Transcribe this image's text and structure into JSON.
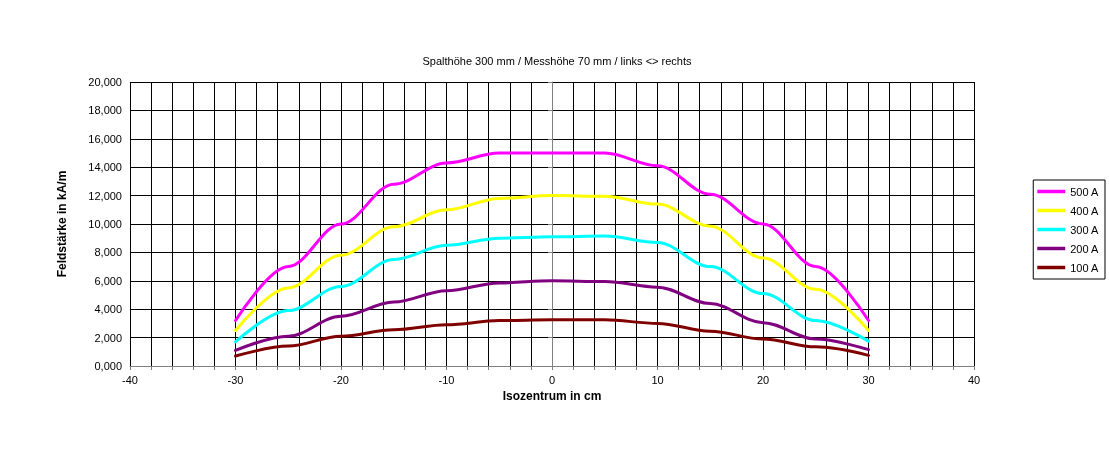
{
  "chart_data": {
    "type": "line",
    "title": "Spalthöhe 300 mm / Messhöhe 70 mm / links <> rechts",
    "xlabel": "Isozentrum in cm",
    "ylabel": "Feldstärke in kA/m",
    "x": [
      -30,
      -25,
      -20,
      -15,
      -10,
      -5,
      0,
      5,
      10,
      15,
      20,
      25,
      30
    ],
    "series": [
      {
        "name": "500 A",
        "color": "#ff00ff",
        "values": [
          3200,
          7000,
          10000,
          12800,
          14300,
          15000,
          15000,
          15000,
          14100,
          12100,
          10000,
          7000,
          3200
        ]
      },
      {
        "name": "400 A",
        "color": "#ffff00",
        "values": [
          2500,
          5500,
          7800,
          9800,
          11000,
          11800,
          12000,
          11950,
          11400,
          9850,
          7600,
          5400,
          2500
        ]
      },
      {
        "name": "300 A",
        "color": "#00ffff",
        "values": [
          1700,
          3900,
          5600,
          7500,
          8500,
          9000,
          9100,
          9150,
          8700,
          7000,
          5100,
          3200,
          1750
        ]
      },
      {
        "name": "200 A",
        "color": "#800080",
        "values": [
          1100,
          2100,
          3500,
          4500,
          5300,
          5850,
          6000,
          5950,
          5550,
          4400,
          3050,
          1900,
          1150
        ]
      },
      {
        "name": "100 A",
        "color": "#800000",
        "values": [
          700,
          1400,
          2100,
          2550,
          2900,
          3200,
          3250,
          3250,
          3000,
          2450,
          1900,
          1350,
          750
        ]
      }
    ],
    "xlim": [
      -40,
      40
    ],
    "xticks": [
      -40,
      {
        "value": -38,
        "label": null
      },
      {
        "value": -36,
        "label": null
      },
      {
        "value": -34,
        "label": null
      },
      {
        "value": -32,
        "label": null
      },
      -30,
      {
        "value": -28,
        "label": null
      },
      {
        "value": -26,
        "label": null
      },
      {
        "value": -24,
        "label": null
      },
      {
        "value": -22,
        "label": null
      },
      -20,
      {
        "value": -18,
        "label": null
      },
      {
        "value": -16,
        "label": null
      },
      {
        "value": -14,
        "label": null
      },
      {
        "value": -12,
        "label": null
      },
      -10,
      {
        "value": -8,
        "label": null
      },
      {
        "value": -6,
        "label": null
      },
      {
        "value": -4,
        "label": null
      },
      {
        "value": -2,
        "label": null
      },
      0,
      {
        "value": 2,
        "label": null
      },
      {
        "value": 4,
        "label": null
      },
      {
        "value": 6,
        "label": null
      },
      {
        "value": 8,
        "label": null
      },
      10,
      {
        "value": 12,
        "label": null
      },
      {
        "value": 14,
        "label": null
      },
      {
        "value": 16,
        "label": null
      },
      {
        "value": 18,
        "label": null
      },
      20,
      {
        "value": 22,
        "label": null
      },
      {
        "value": 24,
        "label": null
      },
      {
        "value": 26,
        "label": null
      },
      {
        "value": 28,
        "label": null
      },
      30,
      {
        "value": 32,
        "label": null
      },
      {
        "value": 34,
        "label": null
      },
      {
        "value": 36,
        "label": null
      },
      {
        "value": 38,
        "label": null
      },
      40
    ],
    "ylim": [
      0,
      20000
    ],
    "yticks": [
      {
        "value": 0,
        "label": "0,000"
      },
      {
        "value": 2000,
        "label": "2,000"
      },
      {
        "value": 4000,
        "label": "4,000"
      },
      {
        "value": 6000,
        "label": "6,000"
      },
      {
        "value": 8000,
        "label": "8,000"
      },
      {
        "value": 10000,
        "label": "10,000"
      },
      {
        "value": 12000,
        "label": "12,000"
      },
      {
        "value": 14000,
        "label": "14,000"
      },
      {
        "value": 16000,
        "label": "16,000"
      },
      {
        "value": 18000,
        "label": "18,000"
      },
      {
        "value": 20000,
        "label": "20,000"
      }
    ],
    "grid": true,
    "legend": "right",
    "marker": "none",
    "line_style": "solid"
  }
}
